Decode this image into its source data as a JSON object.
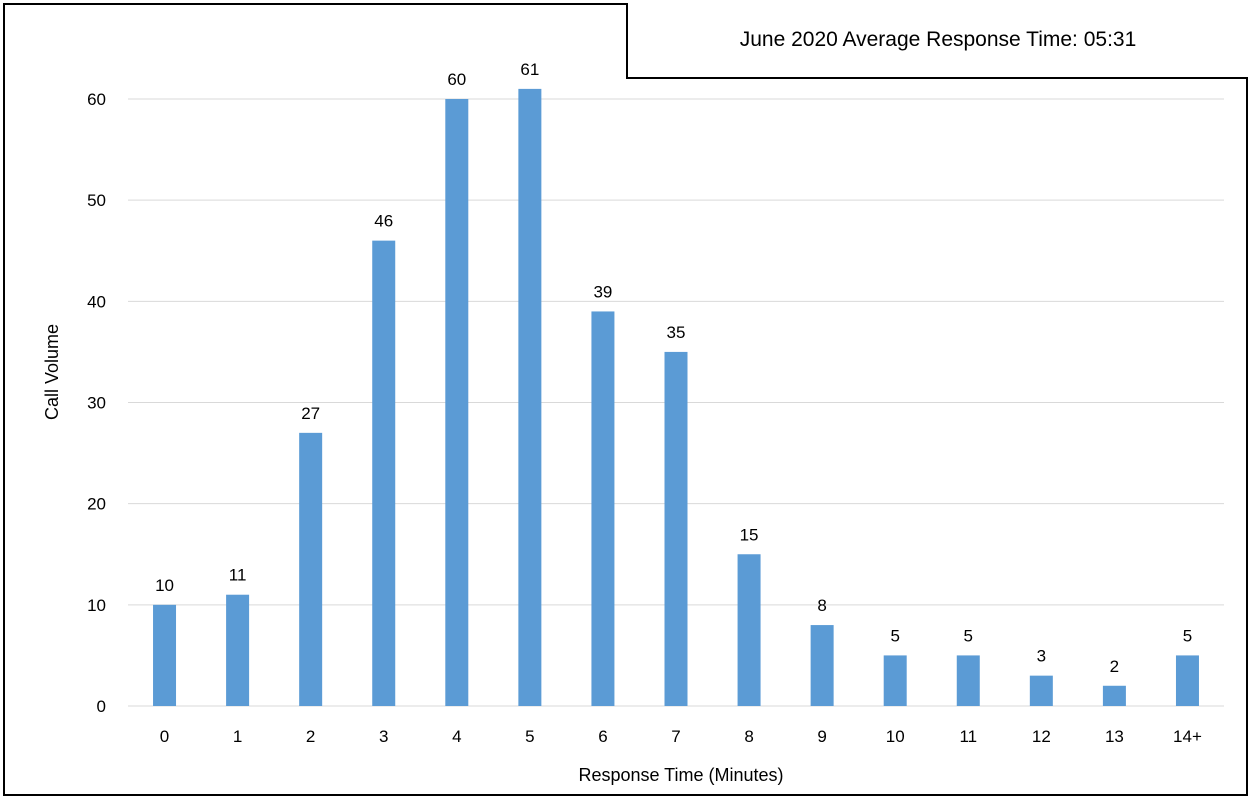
{
  "chart_data": {
    "type": "bar",
    "title": "June 2020 Average Response Time: 05:31",
    "xlabel": "Response Time (Minutes)",
    "ylabel": "Call Volume",
    "categories": [
      "0",
      "1",
      "2",
      "3",
      "4",
      "5",
      "6",
      "7",
      "8",
      "9",
      "10",
      "11",
      "12",
      "13",
      "14+"
    ],
    "values": [
      10,
      11,
      27,
      46,
      60,
      61,
      39,
      35,
      15,
      8,
      5,
      5,
      3,
      2,
      5
    ],
    "yticks": [
      "0",
      "10",
      "20",
      "30",
      "40",
      "50",
      "60"
    ],
    "ylim": [
      0,
      60
    ],
    "grid": true,
    "bar_color": "#5B9BD5",
    "gridline_color": "#D9D9D9",
    "data_labels": true
  }
}
